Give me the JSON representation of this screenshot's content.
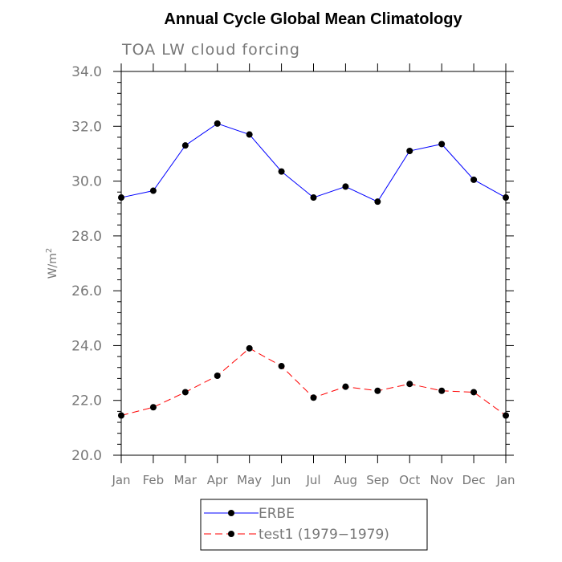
{
  "chart_data": {
    "type": "line",
    "title": "Annual Cycle Global Mean Climatology",
    "subtitle": "TOA LW cloud forcing",
    "xlabel": "",
    "ylabel": "W/m",
    "ylabel_superscript": "2",
    "ylim": [
      20.0,
      34.0
    ],
    "yticks": [
      "20.0",
      "22.0",
      "24.0",
      "26.0",
      "28.0",
      "30.0",
      "32.0",
      "34.0"
    ],
    "ytick_values": [
      20,
      22,
      24,
      26,
      28,
      30,
      32,
      34
    ],
    "categories": [
      "Jan",
      "Feb",
      "Mar",
      "Apr",
      "May",
      "Jun",
      "Jul",
      "Aug",
      "Sep",
      "Oct",
      "Nov",
      "Dec",
      "Jan"
    ],
    "series": [
      {
        "name": "ERBE",
        "color": "#0000ff",
        "dash": "solid",
        "values": [
          29.4,
          29.65,
          31.3,
          32.1,
          31.7,
          30.35,
          29.4,
          29.8,
          29.25,
          31.1,
          31.35,
          30.05,
          29.4
        ]
      },
      {
        "name": "test1 (1979−1979)",
        "color": "#ff0000",
        "dash": "dashed",
        "values": [
          21.45,
          21.75,
          22.3,
          22.9,
          23.9,
          23.25,
          22.1,
          22.5,
          22.35,
          22.6,
          22.35,
          22.3,
          21.45
        ]
      }
    ],
    "legend_position": "bottom-center",
    "marker_color": "#000000"
  }
}
